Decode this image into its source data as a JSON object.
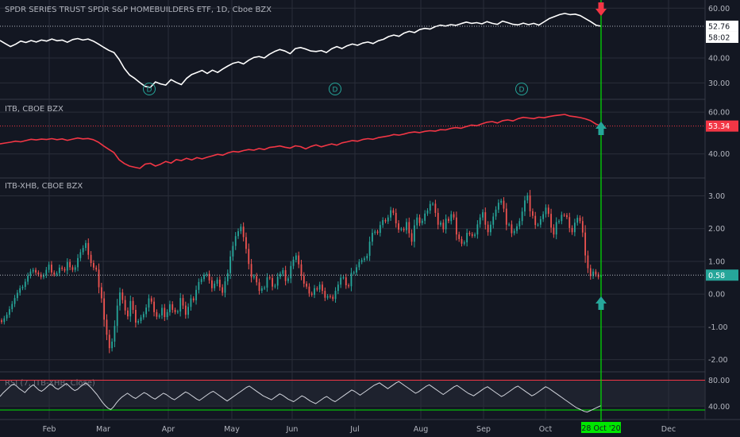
{
  "panes": {
    "xhb": {
      "title": "SPDR SERIES TRUST SPDR S&P HOMEBUILDERS ETF, 1D, Cboe BZX",
      "ticks": [
        "60.00",
        "40.00",
        "30.00"
      ],
      "last_value": "52.76",
      "countdown": "58:02",
      "dividend_label": "D"
    },
    "itb": {
      "title": "ITB, CBOE BZX",
      "ticks": [
        "60.00",
        "40.00"
      ],
      "last_value": "53.34"
    },
    "spread": {
      "title": "ITB-XHB, CBOE BZX",
      "ticks": [
        "3.00",
        "2.00",
        "1.00",
        "0.00",
        "-1.00",
        "-2.00"
      ],
      "last_value": "0.58"
    },
    "rsi": {
      "title": "RSI (7, ITB-XHB, Close)",
      "ticks": [
        "80.00",
        "40.00"
      ]
    }
  },
  "time_axis": {
    "months": [
      "Feb",
      "Mar",
      "Apr",
      "May",
      "Jun",
      "Jul",
      "Aug",
      "Sep",
      "Oct",
      "Dec"
    ],
    "crosshair_label": "28 Oct '20"
  },
  "colors": {
    "bg": "#131722",
    "grid": "#2a2e39",
    "xhb": "#ffffff",
    "itb": "#f23645",
    "up": "#26a69a",
    "down": "#ef5350",
    "rsi": "#d1d4dc",
    "crosshair": "#00e600",
    "marker_down": "#f23645",
    "marker_up": "#26a69a"
  },
  "chart_data": [
    {
      "type": "line",
      "name": "XHB",
      "ylim": [
        25,
        62
      ],
      "y": [
        47,
        45.8,
        44.6,
        45.5,
        46.8,
        46.2,
        47,
        46.4,
        47.2,
        46.8,
        47.6,
        46.9,
        47.2,
        46.3,
        47.4,
        47.8,
        47.2,
        47.6,
        46.8,
        45.6,
        44.3,
        43.1,
        42.2,
        39.4,
        35.8,
        33.2,
        31.8,
        30.1,
        28.6,
        28.2,
        30.4,
        29.6,
        29.1,
        31.3,
        30.2,
        29.3,
        31.8,
        33.4,
        34.2,
        35,
        33.8,
        35.1,
        34.2,
        35.6,
        36.8,
        37.9,
        38.4,
        37.6,
        39.1,
        40.2,
        40.6,
        40,
        41.5,
        42.6,
        43.4,
        42.8,
        41.7,
        43.8,
        44.2,
        43.6,
        42.8,
        42.6,
        43,
        42.2,
        43.7,
        44.6,
        43.8,
        44.9,
        45.6,
        45.1,
        46,
        46.4,
        45.8,
        46.9,
        47.5,
        48.6,
        49.2,
        48.7,
        50,
        50.7,
        50.2,
        51.4,
        51.9,
        51.6,
        52.6,
        53.2,
        52.8,
        53.4,
        53.1,
        53.8,
        54.4,
        53.9,
        54.2,
        53.7,
        54.6,
        53.9,
        53.5,
        54.8,
        54.2,
        53.5,
        53.3,
        54,
        53.4,
        53.9,
        53.2,
        54.5,
        55.8,
        56.6,
        57.4,
        57.9,
        57.4,
        57.6,
        57,
        55.8,
        54.6,
        53.2,
        52.76
      ]
    },
    {
      "type": "line",
      "name": "ITB",
      "ylim": [
        30,
        65
      ],
      "y": [
        44.8,
        45.2,
        45.6,
        46.1,
        45.8,
        46.4,
        47,
        46.7,
        47.1,
        46.9,
        47.3,
        46.8,
        47.2,
        46.5,
        47.1,
        47.6,
        47.2,
        47.4,
        46.8,
        45.6,
        43.8,
        42.2,
        40.6,
        37.2,
        35.4,
        34.2,
        33.6,
        33.1,
        35.1,
        35.5,
        34.2,
        35.1,
        36.4,
        35.6,
        37.3,
        36.8,
        37.9,
        37.1,
        38.2,
        37.6,
        38.4,
        39.1,
        39.8,
        39.4,
        40.5,
        41.2,
        40.9,
        41.6,
        42.1,
        41.8,
        42.6,
        42.1,
        43.1,
        43.4,
        43.8,
        43.2,
        42.8,
        43.9,
        43.5,
        42.4,
        43.6,
        44.3,
        43.4,
        44.1,
        44.8,
        44.2,
        45.3,
        45.8,
        46.4,
        46.1,
        46.9,
        47.3,
        47,
        47.8,
        48.2,
        48.6,
        49.3,
        49,
        49.5,
        50.2,
        50.5,
        50.2,
        50.8,
        51.1,
        50.9,
        51.6,
        51.5,
        52.2,
        52.6,
        52.3,
        53.1,
        53.8,
        53.5,
        54.4,
        55.2,
        55.5,
        54.8,
        55.9,
        56.3,
        55.8,
        56.9,
        57.5,
        57.2,
        56.9,
        57.6,
        57.3,
        57.9,
        58.3,
        58.6,
        58.9,
        58.1,
        57.8,
        57.4,
        56.8,
        55.9,
        54.3,
        53.34
      ]
    },
    {
      "type": "candlestick",
      "name": "ITB-XHB",
      "ylim": [
        -2.3,
        3.4
      ],
      "close": [
        -0.85,
        -0.74,
        -0.63,
        -0.46,
        -0.3,
        -0.12,
        0.04,
        0.18,
        0.22,
        0.38,
        0.56,
        0.69,
        0.74,
        0.66,
        0.6,
        0.52,
        0.58,
        0.74,
        0.9,
        0.66,
        0.6,
        0.64,
        0.81,
        0.77,
        0.72,
        0.98,
        0.82,
        0.74,
        0.82,
        1.1,
        1.28,
        1.41,
        1.56,
        1.2,
        0.95,
        0.81,
        0.75,
        0.21,
        -0.13,
        -0.78,
        -1.24,
        -1.65,
        -1.45,
        -0.97,
        -0.35,
        0.05,
        -0.18,
        -0.5,
        -0.68,
        -0.21,
        -0.48,
        -0.87,
        -0.82,
        -0.71,
        -0.61,
        -0.41,
        -0.13,
        -0.23,
        -0.55,
        -0.69,
        -0.65,
        -0.42,
        -0.7,
        -0.55,
        -0.31,
        -0.48,
        -0.55,
        -0.53,
        -0.12,
        -0.35,
        -0.63,
        -0.39,
        -0.13,
        -0.19,
        0.13,
        0.37,
        0.46,
        0.58,
        0.62,
        0.42,
        0.18,
        0.32,
        0.44,
        0.21,
        0.04,
        0.39,
        0.64,
        1.15,
        1.47,
        1.77,
        1.92,
        2.06,
        1.74,
        1.38,
        0.92,
        0.51,
        0.55,
        0.36,
        0.1,
        0.18,
        0.2,
        0.51,
        0.49,
        0.23,
        0.26,
        0.53,
        0.62,
        0.73,
        0.4,
        0.48,
        0.86,
        1.05,
        1.18,
        0.91,
        0.56,
        0.32,
        0.23,
        0.02,
        -0.02,
        0.18,
        0.14,
        0.29,
        0.1,
        -0.11,
        -0.06,
        -0.08,
        -0.15,
        0.1,
        0.29,
        0.5,
        0.51,
        0.27,
        0.24,
        0.65,
        0.66,
        0.82,
        0.98,
        1.04,
        1.09,
        1.17,
        1.6,
        1.87,
        1.91,
        1.87,
        2.11,
        2.26,
        2.22,
        2.34,
        2.56,
        2.48,
        2.16,
        1.97,
        1.99,
        1.95,
        2.2,
        1.86,
        1.6,
        2.1,
        2.34,
        2.17,
        2.24,
        2.46,
        2.55,
        2.75,
        2.76,
        2.48,
        2.12,
        2.18,
        1.98,
        2.3,
        2.23,
        2.44,
        2.34,
        1.82,
        1.68,
        1.54,
        1.58,
        1.87,
        1.83,
        1.78,
        1.82,
        2.13,
        2.34,
        2.5,
        2.12,
        1.89,
        2.12,
        2.37,
        2.58,
        2.79,
        2.85,
        2.61,
        2.12,
        2.13,
        1.86,
        1.93,
        2.07,
        2.23,
        2.52,
        2.86,
        3.01,
        2.53,
        2.39,
        2.11,
        2.12,
        2.29,
        2.44,
        2.64,
        2.45,
        2.03,
        1.82,
        2.2,
        2.23,
        2.42,
        2.41,
        2.35,
        2.02,
        1.89,
        2.18,
        2.33,
        2.23,
        1.88,
        1.18,
        0.79,
        0.55,
        0.69,
        0.6,
        0.52,
        0.58
      ]
    },
    {
      "type": "line",
      "name": "RSI",
      "ylim": [
        22,
        88
      ],
      "y": [
        55,
        60,
        64,
        68,
        72,
        74,
        71,
        67,
        64,
        61,
        66,
        70,
        73,
        69,
        65,
        63,
        66,
        70,
        74,
        72,
        68,
        66,
        69,
        72,
        75,
        71,
        67,
        64,
        66,
        70,
        73,
        76,
        72,
        68,
        63,
        58,
        52,
        46,
        41,
        37,
        35,
        39,
        45,
        50,
        54,
        57,
        60,
        57,
        54,
        52,
        55,
        58,
        61,
        59,
        56,
        53,
        51,
        54,
        57,
        60,
        58,
        55,
        52,
        50,
        53,
        56,
        59,
        62,
        60,
        57,
        54,
        51,
        49,
        52,
        55,
        58,
        61,
        63,
        60,
        57,
        54,
        51,
        48,
        51,
        54,
        57,
        60,
        63,
        66,
        69,
        71,
        68,
        65,
        62,
        59,
        56,
        54,
        52,
        50,
        53,
        56,
        59,
        57,
        54,
        51,
        49,
        47,
        50,
        53,
        56,
        54,
        51,
        48,
        46,
        44,
        47,
        50,
        53,
        55,
        52,
        49,
        47,
        50,
        53,
        56,
        59,
        62,
        65,
        63,
        60,
        57,
        60,
        63,
        66,
        69,
        72,
        74,
        76,
        73,
        70,
        67,
        70,
        73,
        76,
        78,
        75,
        72,
        69,
        66,
        63,
        60,
        62,
        65,
        68,
        71,
        73,
        70,
        67,
        64,
        61,
        58,
        61,
        64,
        67,
        70,
        72,
        69,
        66,
        63,
        60,
        58,
        56,
        59,
        62,
        65,
        68,
        70,
        67,
        64,
        61,
        58,
        55,
        57,
        60,
        63,
        66,
        69,
        71,
        68,
        65,
        62,
        59,
        56,
        58,
        61,
        64,
        67,
        70,
        68,
        65,
        62,
        59,
        56,
        53,
        50,
        47,
        44,
        41,
        38,
        36,
        34,
        32,
        31,
        33,
        35,
        37,
        39,
        41
      ]
    }
  ]
}
